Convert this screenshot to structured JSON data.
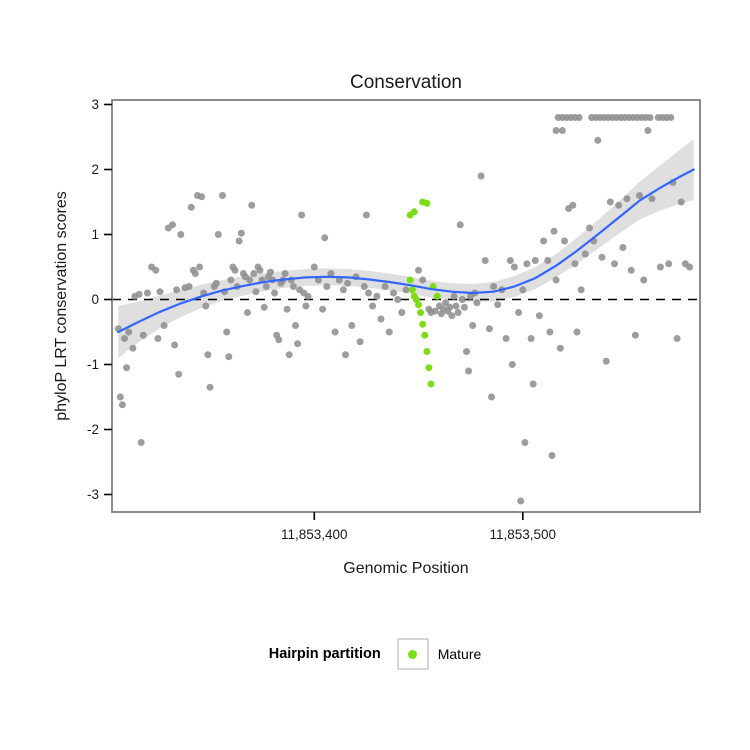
{
  "chart_data": {
    "type": "scatter",
    "title": "Conservation",
    "xlabel": "Genomic Position",
    "ylabel": "phyloP LRT conservation scores",
    "xlim": [
      11853303,
      11853585
    ],
    "ylim": [
      -3.27,
      3.07
    ],
    "grid": false,
    "hline": 0,
    "x_ticks": [
      {
        "value": 11853400,
        "label": "11,853,400"
      },
      {
        "value": 11853500,
        "label": "11,853,500"
      }
    ],
    "y_ticks": [
      {
        "value": 3,
        "label": "3"
      },
      {
        "value": 2,
        "label": "2"
      },
      {
        "value": 1,
        "label": "1"
      },
      {
        "value": 0,
        "label": "0"
      },
      {
        "value": -1,
        "label": "-1"
      },
      {
        "value": -2,
        "label": "-2"
      },
      {
        "value": -3,
        "label": "-3"
      }
    ],
    "colors": {
      "other": "#8f8f8f",
      "mature": "#7cdd17",
      "smooth_line": "#3366FF",
      "band": "#9a9a9a",
      "panel_border": "#7f7f7f"
    },
    "legend": {
      "title": "Hairpin partition",
      "entries": [
        {
          "label": "Mature",
          "color": "#7cdd17"
        }
      ],
      "position": "bottom"
    },
    "series": [
      {
        "name": "Other",
        "role": "other",
        "points": [
          [
            11853306,
            -0.45
          ],
          [
            11853307,
            -1.5
          ],
          [
            11853308,
            -1.62
          ],
          [
            11853309,
            -0.6
          ],
          [
            11853310,
            -1.05
          ],
          [
            11853311,
            -0.5
          ],
          [
            11853313,
            -0.75
          ],
          [
            11853314,
            0.05
          ],
          [
            11853316,
            0.08
          ],
          [
            11853317,
            -2.2
          ],
          [
            11853318,
            -0.55
          ],
          [
            11853320,
            0.1
          ],
          [
            11853322,
            0.5
          ],
          [
            11853324,
            0.45
          ],
          [
            11853325,
            -0.6
          ],
          [
            11853326,
            0.12
          ],
          [
            11853328,
            -0.4
          ],
          [
            11853330,
            1.1
          ],
          [
            11853332,
            1.15
          ],
          [
            11853333,
            -0.7
          ],
          [
            11853334,
            0.15
          ],
          [
            11853335,
            -1.15
          ],
          [
            11853336,
            1.0
          ],
          [
            11853338,
            0.18
          ],
          [
            11853340,
            0.2
          ],
          [
            11853341,
            1.42
          ],
          [
            11853344,
            1.6
          ],
          [
            11853346,
            1.58
          ],
          [
            11853342,
            0.45
          ],
          [
            11853343,
            0.4
          ],
          [
            11853345,
            0.5
          ],
          [
            11853347,
            0.1
          ],
          [
            11853348,
            -0.1
          ],
          [
            11853349,
            -0.85
          ],
          [
            11853350,
            -1.35
          ],
          [
            11853352,
            0.2
          ],
          [
            11853353,
            0.25
          ],
          [
            11853354,
            1.0
          ],
          [
            11853356,
            1.6
          ],
          [
            11853357,
            0.12
          ],
          [
            11853358,
            -0.5
          ],
          [
            11853359,
            -0.88
          ],
          [
            11853360,
            0.3
          ],
          [
            11853361,
            0.5
          ],
          [
            11853362,
            0.45
          ],
          [
            11853363,
            0.2
          ],
          [
            11853364,
            0.9
          ],
          [
            11853365,
            1.02
          ],
          [
            11853366,
            0.4
          ],
          [
            11853367,
            0.35
          ],
          [
            11853368,
            -0.2
          ],
          [
            11853369,
            0.3
          ],
          [
            11853370,
            1.45
          ],
          [
            11853371,
            0.4
          ],
          [
            11853372,
            0.12
          ],
          [
            11853373,
            0.5
          ],
          [
            11853374,
            0.45
          ],
          [
            11853375,
            0.3
          ],
          [
            11853376,
            -0.12
          ],
          [
            11853377,
            0.2
          ],
          [
            11853378,
            0.35
          ],
          [
            11853379,
            0.42
          ],
          [
            11853380,
            0.3
          ],
          [
            11853381,
            0.1
          ],
          [
            11853382,
            -0.55
          ],
          [
            11853383,
            -0.62
          ],
          [
            11853384,
            0.25
          ],
          [
            11853385,
            0.3
          ],
          [
            11853386,
            0.4
          ],
          [
            11853387,
            -0.15
          ],
          [
            11853388,
            -0.85
          ],
          [
            11853389,
            0.3
          ],
          [
            11853390,
            0.2
          ],
          [
            11853391,
            -0.4
          ],
          [
            11853392,
            -0.68
          ],
          [
            11853393,
            0.15
          ],
          [
            11853394,
            1.3
          ],
          [
            11853395,
            0.1
          ],
          [
            11853396,
            -0.1
          ],
          [
            11853397,
            0.05
          ],
          [
            11853400,
            0.5
          ],
          [
            11853402,
            0.3
          ],
          [
            11853404,
            -0.15
          ],
          [
            11853405,
            0.95
          ],
          [
            11853406,
            0.2
          ],
          [
            11853408,
            0.4
          ],
          [
            11853410,
            -0.5
          ],
          [
            11853412,
            0.3
          ],
          [
            11853414,
            0.15
          ],
          [
            11853415,
            -0.85
          ],
          [
            11853416,
            0.25
          ],
          [
            11853418,
            -0.4
          ],
          [
            11853420,
            0.35
          ],
          [
            11853422,
            -0.65
          ],
          [
            11853424,
            0.2
          ],
          [
            11853425,
            1.3
          ],
          [
            11853426,
            0.1
          ],
          [
            11853428,
            -0.1
          ],
          [
            11853430,
            0.05
          ],
          [
            11853432,
            -0.3
          ],
          [
            11853434,
            0.2
          ],
          [
            11853436,
            -0.5
          ],
          [
            11853438,
            0.1
          ],
          [
            11853440,
            0.0
          ],
          [
            11853442,
            -0.2
          ],
          [
            11853444,
            0.15
          ],
          [
            11853450,
            0.45
          ],
          [
            11853452,
            0.3
          ],
          [
            11853455,
            -0.15
          ],
          [
            11853456,
            -0.2
          ],
          [
            11853458,
            -0.18
          ],
          [
            11853460,
            -0.1
          ],
          [
            11853461,
            -0.22
          ],
          [
            11853462,
            -0.15
          ],
          [
            11853463,
            -0.05
          ],
          [
            11853464,
            -0.18
          ],
          [
            11853465,
            -0.12
          ],
          [
            11853466,
            -0.25
          ],
          [
            11853467,
            0.05
          ],
          [
            11853468,
            -0.1
          ],
          [
            11853469,
            -0.2
          ],
          [
            11853470,
            1.15
          ],
          [
            11853471,
            0.0
          ],
          [
            11853472,
            -0.12
          ],
          [
            11853473,
            -0.8
          ],
          [
            11853474,
            -1.1
          ],
          [
            11853475,
            0.05
          ],
          [
            11853476,
            -0.4
          ],
          [
            11853477,
            0.1
          ],
          [
            11853478,
            -0.05
          ],
          [
            11853480,
            1.9
          ],
          [
            11853482,
            0.6
          ],
          [
            11853484,
            -0.45
          ],
          [
            11853485,
            -1.5
          ],
          [
            11853486,
            0.2
          ],
          [
            11853488,
            -0.08
          ],
          [
            11853490,
            0.15
          ],
          [
            11853492,
            -0.6
          ],
          [
            11853494,
            0.6
          ],
          [
            11853495,
            -1.0
          ],
          [
            11853496,
            0.5
          ],
          [
            11853498,
            -0.2
          ],
          [
            11853499,
            -3.1
          ],
          [
            11853500,
            0.15
          ],
          [
            11853501,
            -2.2
          ],
          [
            11853502,
            0.55
          ],
          [
            11853504,
            -0.6
          ],
          [
            11853505,
            -1.3
          ],
          [
            11853506,
            0.6
          ],
          [
            11853508,
            -0.25
          ],
          [
            11853510,
            0.9
          ],
          [
            11853512,
            0.6
          ],
          [
            11853513,
            -0.5
          ],
          [
            11853514,
            -2.4
          ],
          [
            11853515,
            1.05
          ],
          [
            11853516,
            0.3
          ],
          [
            11853518,
            -0.75
          ],
          [
            11853520,
            0.9
          ],
          [
            11853522,
            1.4
          ],
          [
            11853524,
            1.45
          ],
          [
            11853525,
            0.55
          ],
          [
            11853526,
            -0.5
          ],
          [
            11853528,
            0.15
          ],
          [
            11853530,
            0.7
          ],
          [
            11853532,
            1.1
          ],
          [
            11853534,
            0.9
          ],
          [
            11853536,
            2.45
          ],
          [
            11853538,
            0.65
          ],
          [
            11853540,
            -0.95
          ],
          [
            11853542,
            1.5
          ],
          [
            11853544,
            0.55
          ],
          [
            11853546,
            1.45
          ],
          [
            11853548,
            0.8
          ],
          [
            11853550,
            1.55
          ],
          [
            11853552,
            0.45
          ],
          [
            11853554,
            -0.55
          ],
          [
            11853556,
            1.6
          ],
          [
            11853558,
            0.3
          ],
          [
            11853560,
            2.6
          ],
          [
            11853562,
            1.55
          ],
          [
            11853516,
            2.6
          ],
          [
            11853519,
            2.6
          ],
          [
            11853517,
            2.8
          ],
          [
            11853519,
            2.8
          ],
          [
            11853521,
            2.8
          ],
          [
            11853523,
            2.8
          ],
          [
            11853525,
            2.8
          ],
          [
            11853527,
            2.8
          ],
          [
            11853533,
            2.8
          ],
          [
            11853535,
            2.8
          ],
          [
            11853537,
            2.8
          ],
          [
            11853539,
            2.8
          ],
          [
            11853541,
            2.8
          ],
          [
            11853543,
            2.8
          ],
          [
            11853545,
            2.8
          ],
          [
            11853547,
            2.8
          ],
          [
            11853549,
            2.8
          ],
          [
            11853551,
            2.8
          ],
          [
            11853553,
            2.8
          ],
          [
            11853555,
            2.8
          ],
          [
            11853557,
            2.8
          ],
          [
            11853559,
            2.8
          ],
          [
            11853561,
            2.8
          ],
          [
            11853565,
            2.8
          ],
          [
            11853567,
            2.8
          ],
          [
            11853569,
            2.8
          ],
          [
            11853571,
            2.8
          ],
          [
            11853566,
            0.5
          ],
          [
            11853570,
            0.55
          ],
          [
            11853572,
            1.8
          ],
          [
            11853574,
            -0.6
          ],
          [
            11853576,
            1.5
          ],
          [
            11853578,
            0.55
          ],
          [
            11853580,
            0.5
          ]
        ]
      },
      {
        "name": "Mature",
        "role": "mature",
        "points": [
          [
            11853446,
            1.3
          ],
          [
            11853448,
            1.35
          ],
          [
            11853452,
            1.5
          ],
          [
            11853454,
            1.48
          ],
          [
            11853446,
            0.3
          ],
          [
            11853447,
            0.15
          ],
          [
            11853448,
            0.05
          ],
          [
            11853449,
            0.0
          ],
          [
            11853450,
            -0.08
          ],
          [
            11853451,
            -0.2
          ],
          [
            11853452,
            -0.38
          ],
          [
            11853453,
            -0.55
          ],
          [
            11853454,
            -0.8
          ],
          [
            11853455,
            -1.05
          ],
          [
            11853456,
            -1.3
          ],
          [
            11853457,
            0.2
          ],
          [
            11853459,
            0.05
          ]
        ]
      }
    ],
    "smooth": [
      [
        11853306,
        -0.5,
        0.4
      ],
      [
        11853316,
        -0.34,
        0.31
      ],
      [
        11853326,
        -0.19,
        0.25
      ],
      [
        11853336,
        -0.06,
        0.21
      ],
      [
        11853346,
        0.05,
        0.18
      ],
      [
        11853356,
        0.14,
        0.16
      ],
      [
        11853366,
        0.21,
        0.15
      ],
      [
        11853376,
        0.27,
        0.14
      ],
      [
        11853386,
        0.31,
        0.13
      ],
      [
        11853396,
        0.34,
        0.13
      ],
      [
        11853406,
        0.35,
        0.13
      ],
      [
        11853416,
        0.34,
        0.13
      ],
      [
        11853426,
        0.31,
        0.13
      ],
      [
        11853436,
        0.27,
        0.13
      ],
      [
        11853446,
        0.22,
        0.13
      ],
      [
        11853456,
        0.16,
        0.13
      ],
      [
        11853466,
        0.12,
        0.13
      ],
      [
        11853476,
        0.1,
        0.14
      ],
      [
        11853486,
        0.12,
        0.15
      ],
      [
        11853496,
        0.2,
        0.16
      ],
      [
        11853506,
        0.33,
        0.17
      ],
      [
        11853516,
        0.52,
        0.18
      ],
      [
        11853526,
        0.75,
        0.2
      ],
      [
        11853536,
        1.0,
        0.22
      ],
      [
        11853546,
        1.26,
        0.25
      ],
      [
        11853556,
        1.52,
        0.29
      ],
      [
        11853566,
        1.72,
        0.35
      ],
      [
        11853576,
        1.9,
        0.42
      ],
      [
        11853582,
        2.0,
        0.47
      ]
    ]
  }
}
